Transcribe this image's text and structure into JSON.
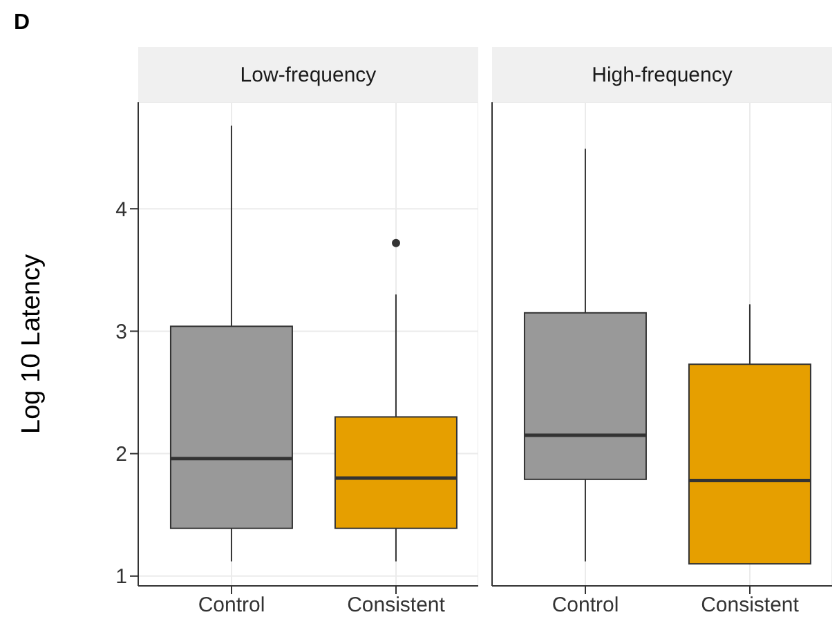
{
  "chart_data": [
    {
      "type": "box",
      "title": "Low-frequency",
      "annotations": [
        "D"
      ],
      "ylabel": "Log 10 Latency",
      "categories": [
        "Control",
        "Consistent"
      ],
      "colors": [
        "#999999",
        "#e69f00"
      ],
      "boxes": [
        {
          "low": 1.12,
          "q1": 1.39,
          "median": 1.96,
          "q3": 3.04,
          "high": 4.68
        },
        {
          "low": 1.12,
          "q1": 1.39,
          "median": 1.8,
          "q3": 2.3,
          "high": 3.3,
          "outliers": [
            3.72
          ]
        }
      ],
      "ylim": [
        0.92,
        4.87
      ],
      "yticks": [
        1,
        2,
        3,
        4
      ],
      "grid": true
    },
    {
      "type": "box",
      "title": "High-frequency",
      "categories": [
        "Control",
        "Consistent"
      ],
      "colors": [
        "#999999",
        "#e69f00"
      ],
      "boxes": [
        {
          "low": 1.12,
          "q1": 1.79,
          "median": 2.15,
          "q3": 3.15,
          "high": 4.49
        },
        {
          "low": 1.1,
          "q1": 1.1,
          "median": 1.78,
          "q3": 2.73,
          "high": 3.22
        }
      ],
      "ylim": [
        0.92,
        4.87
      ],
      "yticks": [
        1,
        2,
        3,
        4
      ],
      "grid": true,
      "tick_labels": "x"
    }
  ]
}
